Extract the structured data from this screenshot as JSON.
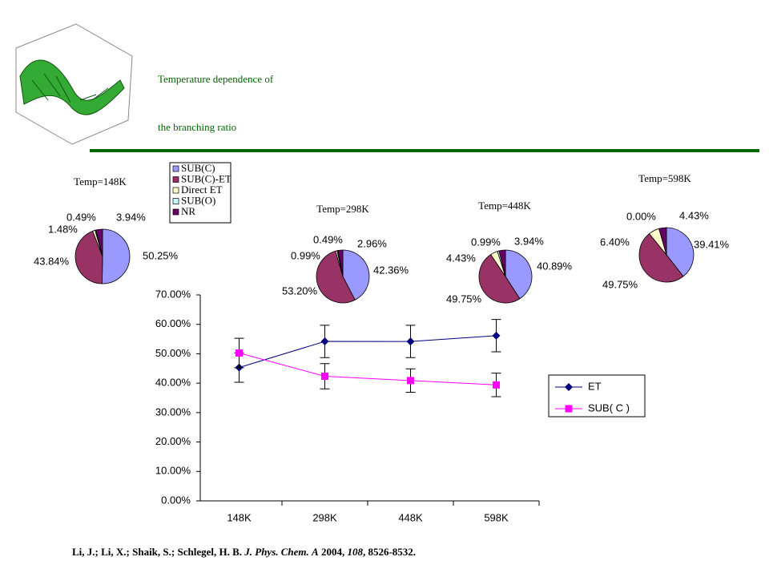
{
  "title_lines": [
    "Temperature dependence of",
    "the branching ratio"
  ],
  "pie_legend": {
    "labels": [
      "SUB(C)",
      "SUB(C)-ET",
      "Direct ET",
      "SUB(O)",
      "NR"
    ],
    "colors": [
      "#9999ff",
      "#993366",
      "#ffffcc",
      "#ccffff",
      "#660066"
    ]
  },
  "chart_data": [
    {
      "type": "pie",
      "title": "Temp=148K",
      "values": [
        50.25,
        43.84,
        1.48,
        0.49,
        3.94
      ],
      "value_labels": [
        "50.25%",
        "43.84%",
        "1.48%",
        "0.49%",
        "3.94%"
      ]
    },
    {
      "type": "pie",
      "title": "Temp=298K",
      "values": [
        42.36,
        53.2,
        0.99,
        0.49,
        2.96
      ],
      "value_labels": [
        "42.36%",
        "53.20%",
        "0.99%",
        "0.49%",
        "2.96%"
      ]
    },
    {
      "type": "pie",
      "title": "Temp=448K",
      "values": [
        40.89,
        49.75,
        4.43,
        0.99,
        3.94
      ],
      "value_labels": [
        "40.89%",
        "49.75%",
        "4.43%",
        "0.99%",
        "3.94%"
      ]
    },
    {
      "type": "pie",
      "title": "Temp=598K",
      "values": [
        39.41,
        49.75,
        6.4,
        0.0,
        4.43
      ],
      "value_labels": [
        "39.41%",
        "49.75%",
        "6.40%",
        "0.00%",
        "4.43%"
      ]
    },
    {
      "type": "line",
      "categories": [
        "148K",
        "298K",
        "448K",
        "598K"
      ],
      "series": [
        {
          "name": "ET",
          "color": "#000080",
          "marker": "diamond",
          "values": [
            45.32,
            54.19,
            54.18,
            56.15
          ],
          "errors": [
            5,
            5.5,
            5.5,
            5.5
          ]
        },
        {
          "name": "SUB( C )",
          "color": "#ff00ff",
          "marker": "square",
          "values": [
            50.25,
            42.36,
            40.89,
            39.41
          ],
          "errors": [
            5,
            4.3,
            4,
            4
          ]
        }
      ],
      "ylim": [
        0,
        70
      ],
      "yticks": [
        {
          "value": 0,
          "label": "0.00%"
        },
        {
          "value": 10,
          "label": "10.00%"
        },
        {
          "value": 20,
          "label": "20.00%"
        },
        {
          "value": 30,
          "label": "30.00%"
        },
        {
          "value": 40,
          "label": "40.00%"
        },
        {
          "value": 50,
          "label": "50.00%"
        },
        {
          "value": 60,
          "label": "60.00%"
        },
        {
          "value": 70,
          "label": "70.00%"
        }
      ]
    }
  ],
  "citation": [
    {
      "text": "Li, J.; Li, X.; Shaik, S.; Schlegel, H. B. ",
      "italic": false
    },
    {
      "text": "J. Phys. Chem. A",
      "italic": true
    },
    {
      "text": " 2004, ",
      "italic": false
    },
    {
      "text": "108",
      "italic": true
    },
    {
      "text": ", 8526-8532.",
      "italic": false
    }
  ]
}
